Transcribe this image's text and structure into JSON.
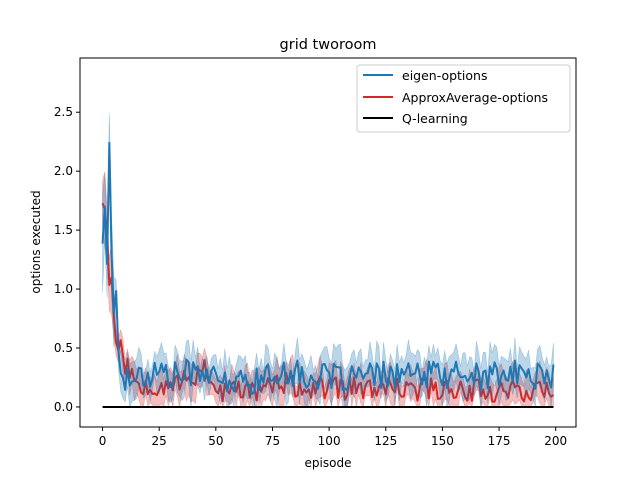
{
  "chart_data": {
    "type": "line",
    "title": "grid  tworoom",
    "xlabel": "episode",
    "ylabel": "options executed",
    "xlim": [
      -9.95,
      208.95
    ],
    "ylim": [
      -0.17,
      2.96
    ],
    "xticks": [
      0,
      25,
      50,
      75,
      100,
      125,
      150,
      175,
      200
    ],
    "yticks": [
      0.0,
      0.5,
      1.0,
      1.5,
      2.0,
      2.5
    ],
    "xtick_labels": [
      "0",
      "25",
      "50",
      "75",
      "100",
      "125",
      "150",
      "175",
      "200"
    ],
    "ytick_labels": [
      "0.0",
      "0.5",
      "1.0",
      "1.5",
      "2.0",
      "2.5"
    ],
    "grid": false,
    "legend_position": "top-right",
    "series": [
      {
        "name": "eigen-options",
        "color": "#1f77b4",
        "band_opacity": 0.3,
        "anchors_x": [
          0,
          1,
          2,
          3,
          4,
          5,
          6,
          7,
          8,
          10,
          12,
          15,
          20,
          25,
          30,
          35,
          40,
          45,
          50,
          55,
          60,
          65,
          70,
          75,
          80,
          85,
          90,
          95,
          100,
          110,
          120,
          130,
          140,
          150,
          160,
          170,
          180,
          190,
          199
        ],
        "anchors_y": [
          1.4,
          1.7,
          1.2,
          2.23,
          1.3,
          0.8,
          1.0,
          0.45,
          0.3,
          0.2,
          0.3,
          0.28,
          0.25,
          0.32,
          0.25,
          0.28,
          0.3,
          0.32,
          0.2,
          0.22,
          0.2,
          0.22,
          0.24,
          0.25,
          0.32,
          0.28,
          0.26,
          0.24,
          0.25,
          0.25,
          0.26,
          0.28,
          0.26,
          0.28,
          0.27,
          0.26,
          0.28,
          0.27,
          0.25
        ],
        "noise": 0.12,
        "band_halfwidth": 0.15,
        "seed": 17
      },
      {
        "name": "ApproxAverage-options",
        "color": "#d62728",
        "band_opacity": 0.3,
        "anchors_x": [
          0,
          1,
          2,
          3,
          4,
          5,
          6,
          7,
          8,
          10,
          12,
          15,
          20,
          25,
          30,
          35,
          40,
          45,
          50,
          55,
          60,
          65,
          70,
          75,
          80,
          85,
          90,
          95,
          100,
          110,
          120,
          130,
          140,
          150,
          160,
          170,
          180,
          190,
          199
        ],
        "anchors_y": [
          1.74,
          1.7,
          1.45,
          1.05,
          1.1,
          0.75,
          0.55,
          0.5,
          0.55,
          0.35,
          0.3,
          0.22,
          0.2,
          0.18,
          0.22,
          0.2,
          0.25,
          0.35,
          0.15,
          0.12,
          0.15,
          0.14,
          0.16,
          0.18,
          0.2,
          0.17,
          0.15,
          0.16,
          0.15,
          0.16,
          0.15,
          0.14,
          0.15,
          0.16,
          0.15,
          0.14,
          0.15,
          0.14,
          0.13
        ],
        "noise": 0.1,
        "band_halfwidth": 0.13,
        "seed": 53
      },
      {
        "name": "Q-learning",
        "color": "#000000",
        "anchors_x": [
          0,
          199
        ],
        "anchors_y": [
          0.0,
          0.0
        ],
        "noise": 0,
        "band_halfwidth": 0,
        "seed": 1
      }
    ]
  }
}
